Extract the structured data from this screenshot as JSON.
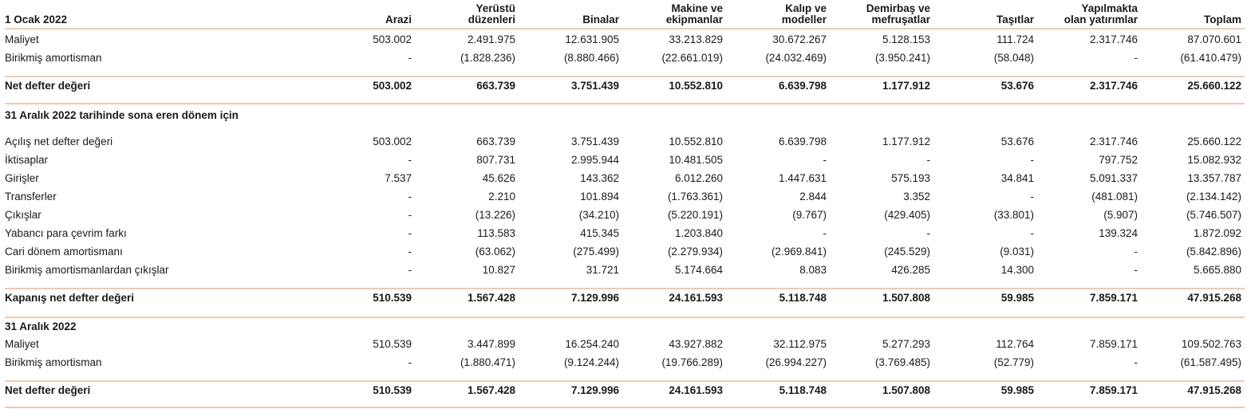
{
  "header": {
    "period": "1 Ocak 2022",
    "columns": [
      [
        "Arazi"
      ],
      [
        "Yerüstü",
        "düzenleri"
      ],
      [
        "Binalar"
      ],
      [
        "Makine ve",
        "ekipmanlar"
      ],
      [
        "Kalıp ve",
        "modeller"
      ],
      [
        "Demirbaş ve",
        "mefruşatlar"
      ],
      [
        "Taşıtlar"
      ],
      [
        "Yapılmakta",
        "olan yatırımlar"
      ],
      [
        "Toplam"
      ]
    ]
  },
  "rows": [
    {
      "label": "Maliyet",
      "values": [
        "503.002",
        "2.491.975",
        "12.631.905",
        "33.213.829",
        "30.672.267",
        "5.128.153",
        "111.724",
        "2.317.746",
        "87.070.601"
      ]
    },
    {
      "label": "Birikmiş amortisman",
      "values": [
        "-",
        "(1.828.236)",
        "(8.880.466)",
        "(22.661.019)",
        "(24.032.469)",
        "(3.950.241)",
        "(58.048)",
        "-",
        "(61.410.479)"
      ]
    },
    {
      "label": "Net defter değeri",
      "bold": true,
      "values": [
        "503.002",
        "663.739",
        "3.751.439",
        "10.552.810",
        "6.639.798",
        "1.177.912",
        "53.676",
        "2.317.746",
        "25.660.122"
      ]
    },
    {
      "label": "31 Aralık 2022 tarihinde sona eren dönem için",
      "bold": true,
      "values": []
    },
    {
      "label": "Açılış net defter değeri",
      "values": [
        "503.002",
        "663.739",
        "3.751.439",
        "10.552.810",
        "6.639.798",
        "1.177.912",
        "53.676",
        "2.317.746",
        "25.660.122"
      ]
    },
    {
      "label": "İktisaplar",
      "values": [
        "-",
        "807.731",
        "2.995.944",
        "10.481.505",
        "-",
        "-",
        "-",
        "797.752",
        "15.082.932"
      ]
    },
    {
      "label": "Girişler",
      "values": [
        "7.537",
        "45.626",
        "143.362",
        "6.012.260",
        "1.447.631",
        "575.193",
        "34.841",
        "5.091.337",
        "13.357.787"
      ]
    },
    {
      "label": "Transferler",
      "values": [
        "-",
        "2.210",
        "101.894",
        "(1.763.361)",
        "2.844",
        "3.352",
        "-",
        "(481.081)",
        "(2.134.142)"
      ]
    },
    {
      "label": "Çıkışlar",
      "values": [
        "-",
        "(13.226)",
        "(34.210)",
        "(5.220.191)",
        "(9.767)",
        "(429.405)",
        "(33.801)",
        "(5.907)",
        "(5.746.507)"
      ]
    },
    {
      "label": "Yabancı para çevrim farkı",
      "values": [
        "-",
        "113.583",
        "415.345",
        "1.203.840",
        "-",
        "-",
        "-",
        "139.324",
        "1.872.092"
      ]
    },
    {
      "label": "Cari dönem amortismanı",
      "values": [
        "-",
        "(63.062)",
        "(275.499)",
        "(2.279.934)",
        "(2.969.841)",
        "(245.529)",
        "(9.031)",
        "-",
        "(5.842.896)"
      ]
    },
    {
      "label": "Birikmiş amortismanlardan çıkışlar",
      "values": [
        "-",
        "10.827",
        "31.721",
        "5.174.664",
        "8.083",
        "426.285",
        "14.300",
        "-",
        "5.665.880"
      ]
    },
    {
      "label": "Kapanış net defter değeri",
      "bold": true,
      "values": [
        "510.539",
        "1.567.428",
        "7.129.996",
        "24.161.593",
        "5.118.748",
        "1.507.808",
        "59.985",
        "7.859.171",
        "47.915.268"
      ]
    },
    {
      "label": "31 Aralık 2022",
      "bold": true,
      "values": []
    },
    {
      "label": "Maliyet",
      "values": [
        "510.539",
        "3.447.899",
        "16.254.240",
        "43.927.882",
        "32.112.975",
        "5.277.293",
        "112.764",
        "7.859.171",
        "109.502.763"
      ]
    },
    {
      "label": "Birikmiş amortisman",
      "values": [
        "-",
        "(1.880.471)",
        "(9.124.244)",
        "(19.766.289)",
        "(26.994.227)",
        "(3.769.485)",
        "(52.779)",
        "-",
        "(61.587.495)"
      ]
    },
    {
      "label": "Net defter değeri",
      "bold": true,
      "values": [
        "510.539",
        "1.567.428",
        "7.129.996",
        "24.161.593",
        "5.118.748",
        "1.507.808",
        "59.985",
        "7.859.171",
        "47.915.268"
      ]
    }
  ]
}
